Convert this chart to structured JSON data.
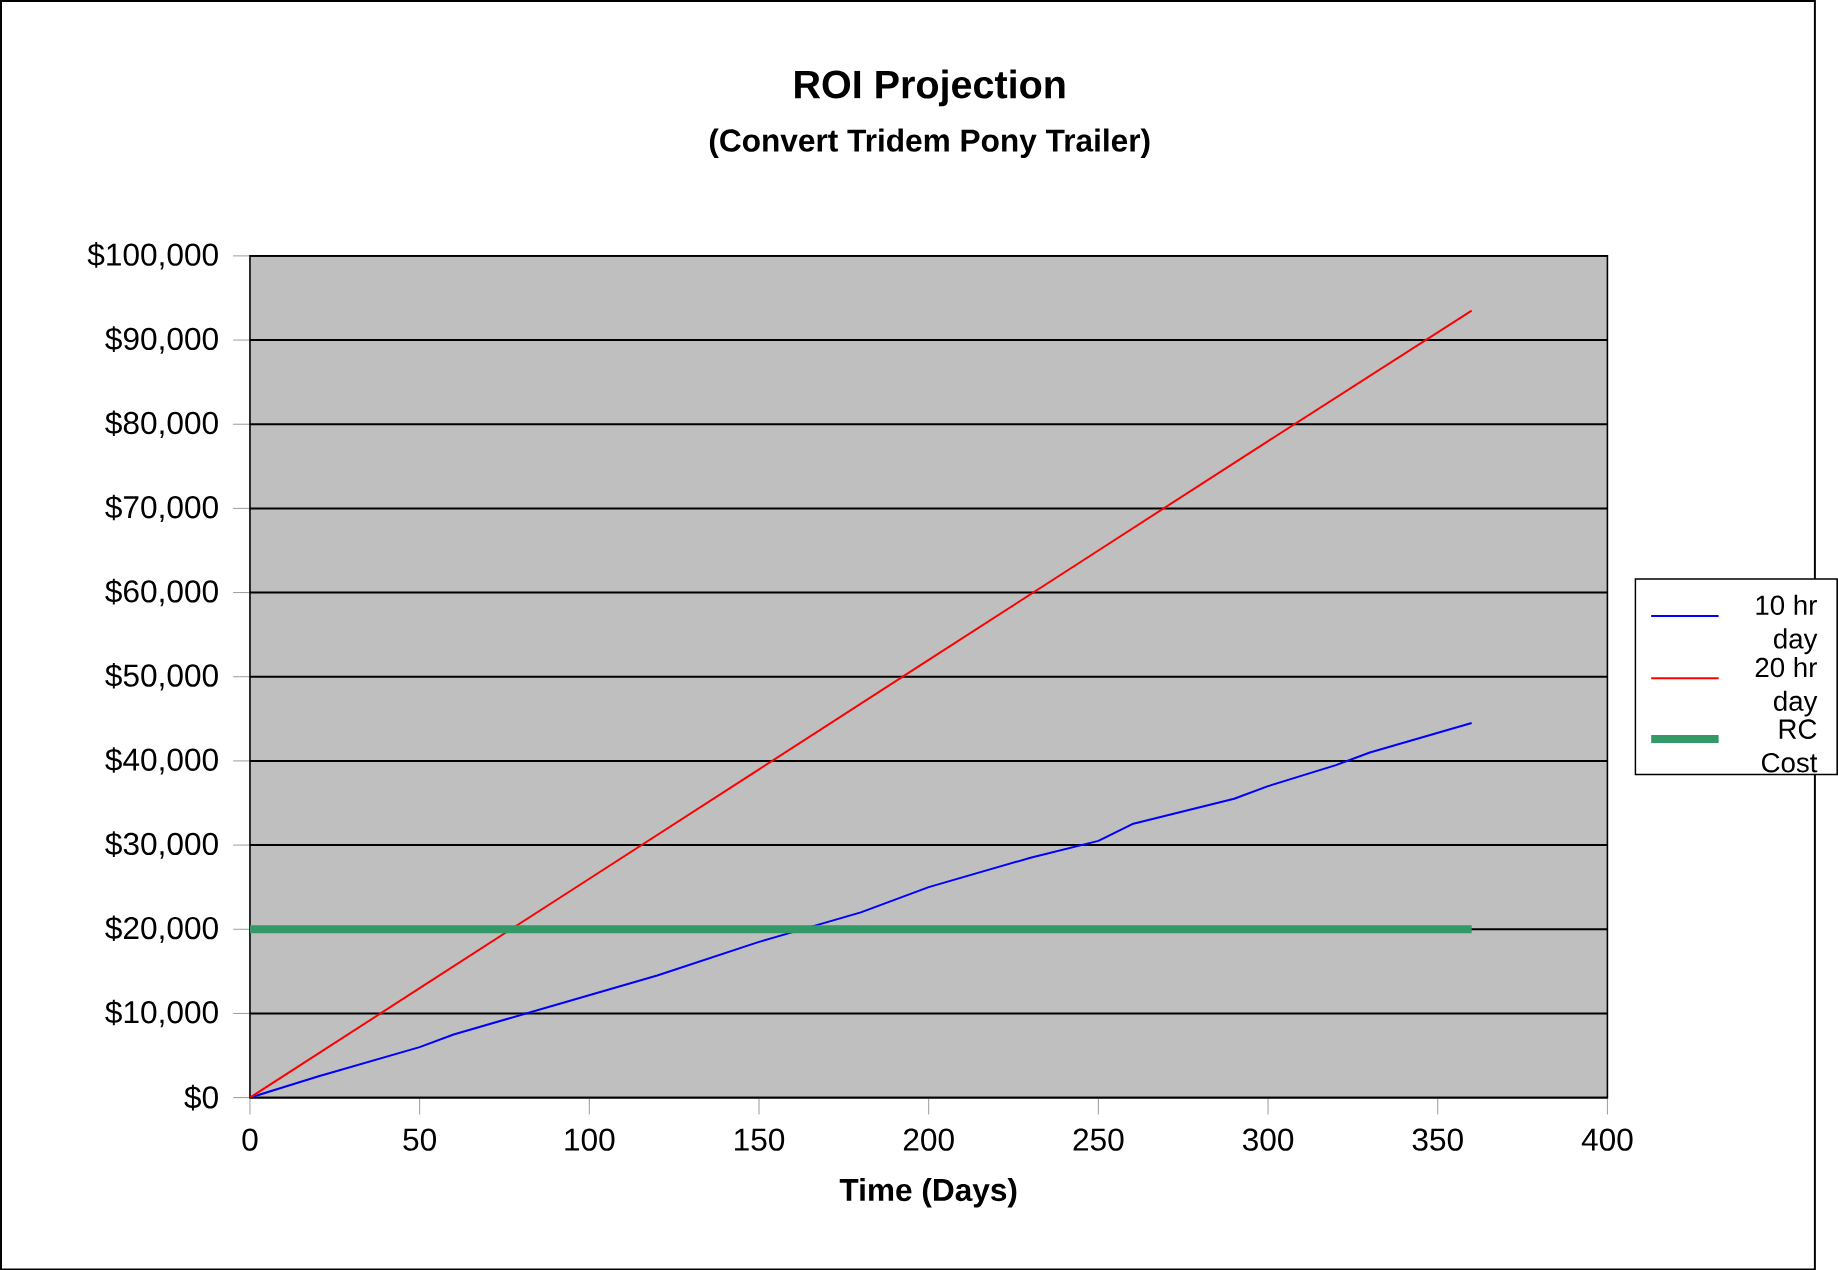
{
  "chart_data": {
    "type": "line",
    "title": "ROI Projection",
    "subtitle": "(Convert Tridem Pony Trailer)",
    "xlabel": "Time (Days)",
    "xlim": [
      0,
      400
    ],
    "xticks": [
      0,
      50,
      100,
      150,
      200,
      250,
      300,
      350,
      400
    ],
    "ylim": [
      0,
      100000
    ],
    "yticks": [
      {
        "value": 0,
        "label": "$0"
      },
      {
        "value": 10000,
        "label": "$10,000"
      },
      {
        "value": 20000,
        "label": "$20,000"
      },
      {
        "value": 30000,
        "label": "$30,000"
      },
      {
        "value": 40000,
        "label": "$40,000"
      },
      {
        "value": 50000,
        "label": "$50,000"
      },
      {
        "value": 60000,
        "label": "$60,000"
      },
      {
        "value": 70000,
        "label": "$70,000"
      },
      {
        "value": 80000,
        "label": "$80,000"
      },
      {
        "value": 90000,
        "label": "$90,000"
      },
      {
        "value": 100000,
        "label": "$100,000"
      }
    ],
    "grid": "y",
    "legend": "right",
    "marker": "none",
    "line_style": "solid",
    "series": [
      {
        "name": "10 hr day",
        "color": "#0000ff",
        "x": [
          0,
          20,
          50,
          60,
          90,
          120,
          150,
          180,
          200,
          230,
          250,
          260,
          290,
          300,
          320,
          330,
          360
        ],
        "values": [
          0,
          2500,
          6000,
          7500,
          11000,
          14500,
          18500,
          22000,
          25000,
          28500,
          30500,
          32500,
          35500,
          37000,
          39500,
          41000,
          44500
        ]
      },
      {
        "name": "20 hr day",
        "color": "#ff0000",
        "x": [
          0,
          50,
          100,
          150,
          200,
          250,
          300,
          360
        ],
        "values": [
          0,
          13000,
          26000,
          39000,
          52000,
          65000,
          78000,
          93500
        ]
      },
      {
        "name": "RC Cost",
        "color": "#339966",
        "x": [
          0,
          360
        ],
        "values": [
          20000,
          20000
        ]
      }
    ]
  }
}
